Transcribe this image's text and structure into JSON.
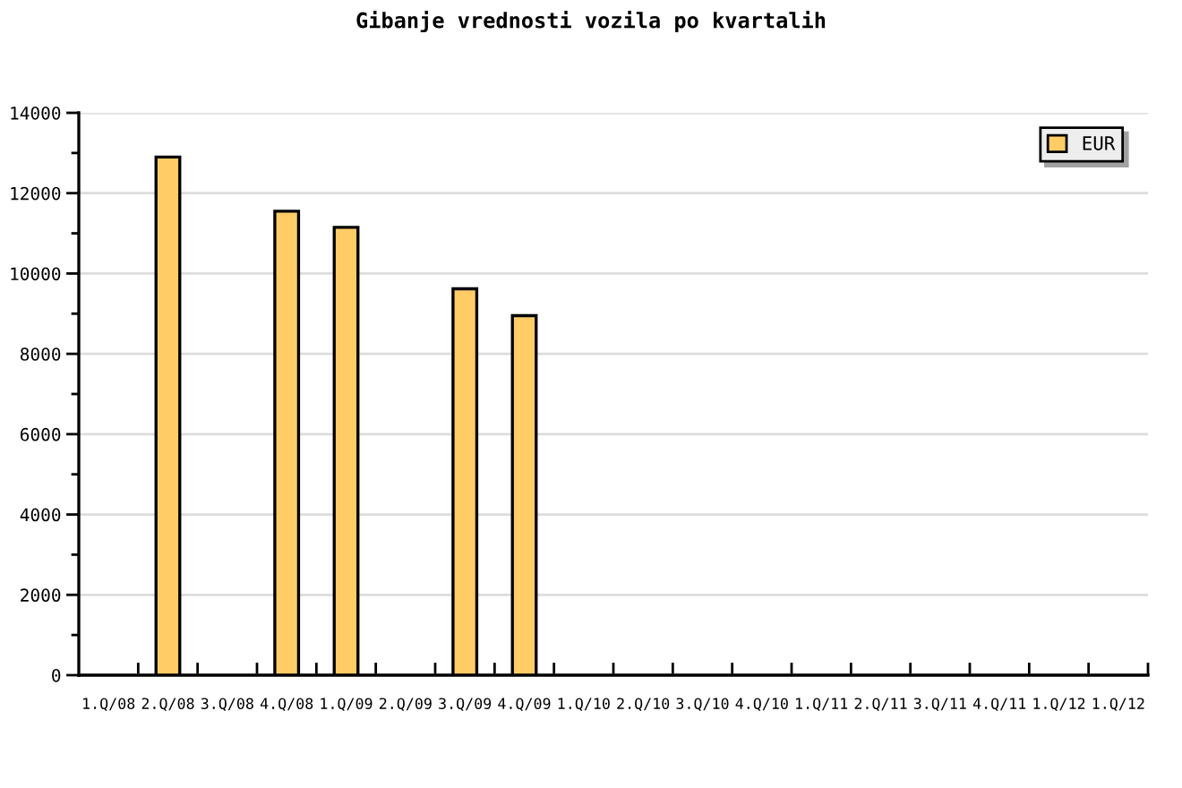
{
  "chart_data": {
    "type": "bar",
    "title": "Gibanje vrednosti vozila po kvartalih",
    "categories": [
      "1.Q/08",
      "2.Q/08",
      "3.Q/08",
      "4.Q/08",
      "1.Q/09",
      "2.Q/09",
      "3.Q/09",
      "4.Q/09",
      "1.Q/10",
      "2.Q/10",
      "3.Q/10",
      "4.Q/10",
      "1.Q/11",
      "2.Q/11",
      "3.Q/11",
      "4.Q/11",
      "1.Q/12",
      "1.Q/12"
    ],
    "series": [
      {
        "name": "EUR",
        "color": "#ffcc66",
        "values": [
          null,
          12900,
          null,
          11550,
          11150,
          null,
          9620,
          8950,
          null,
          null,
          null,
          null,
          null,
          null,
          null,
          null,
          null,
          null
        ]
      }
    ],
    "ylim": [
      0,
      14000
    ],
    "yticks": [
      0,
      {
        "value": 1000,
        "label": null
      },
      2000,
      {
        "value": 3000,
        "label": null
      },
      4000,
      {
        "value": 5000,
        "label": null
      },
      6000,
      {
        "value": 7000,
        "label": null
      },
      8000,
      {
        "value": 9000,
        "label": null
      },
      10000,
      {
        "value": 11000,
        "label": null
      },
      12000,
      {
        "value": 13000,
        "label": null
      },
      14000
    ],
    "grid": "y",
    "legend": "top right"
  }
}
